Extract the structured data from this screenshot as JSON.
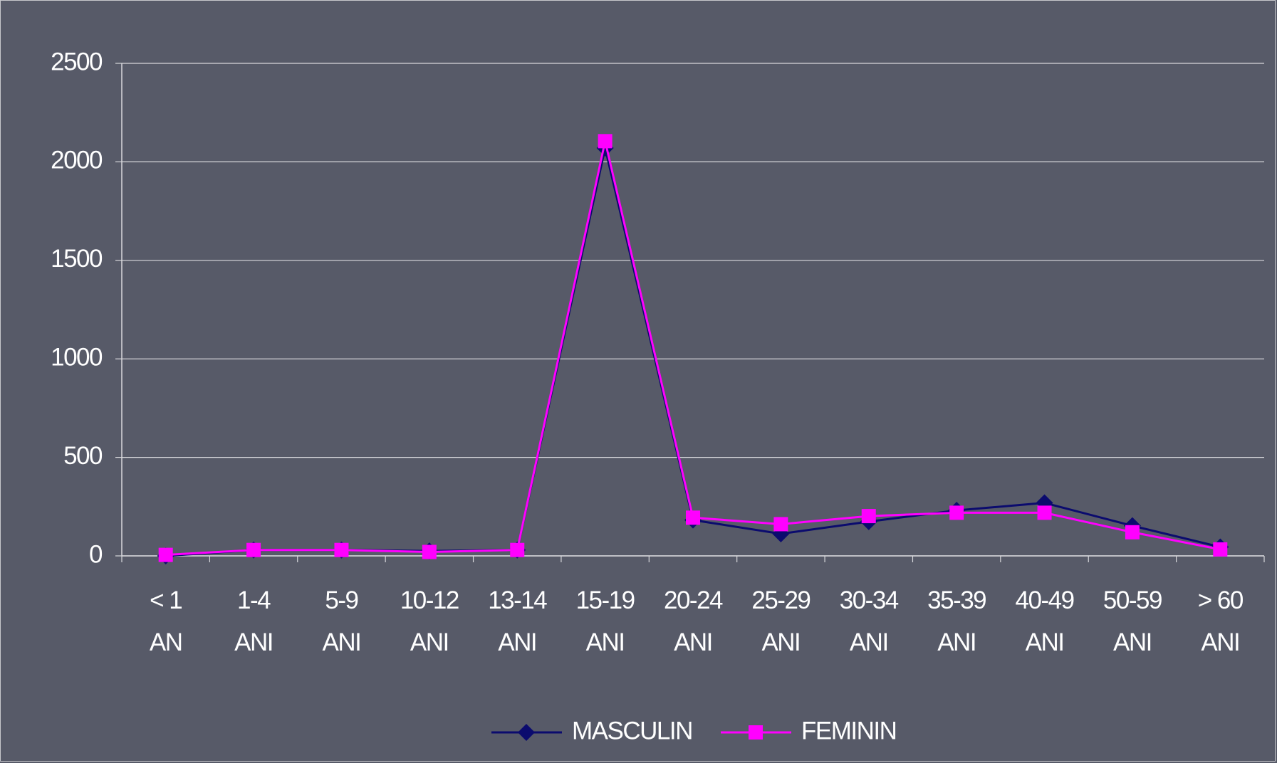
{
  "chart_data": {
    "type": "line",
    "categories": [
      "< 1\nAN",
      "1-4\nANI",
      "5-9\nANI",
      "10-12\nANI",
      "13-14\nANI",
      "15-19\nANI",
      "20-24\nANI",
      "25-29\nANI",
      "30-34\nANI",
      "35-39\nANI",
      "40-49\nANI",
      "50-59\nANI",
      "> 60\nANI"
    ],
    "series": [
      {
        "name": "MASCULIN",
        "color": "#0b0b6e",
        "marker": "diamond",
        "values": [
          0,
          30,
          30,
          25,
          30,
          2070,
          182,
          112,
          174,
          231,
          269,
          153,
          45
        ]
      },
      {
        "name": "FEMININ",
        "color": "#ff00ff",
        "marker": "square",
        "values": [
          5,
          30,
          30,
          20,
          30,
          2105,
          194,
          161,
          202,
          219,
          219,
          120,
          33
        ]
      }
    ],
    "ylim": [
      0,
      2500
    ],
    "yticks": [
      0,
      500,
      1000,
      1500,
      2000,
      2500
    ],
    "grid": true,
    "legend": "bottom"
  }
}
